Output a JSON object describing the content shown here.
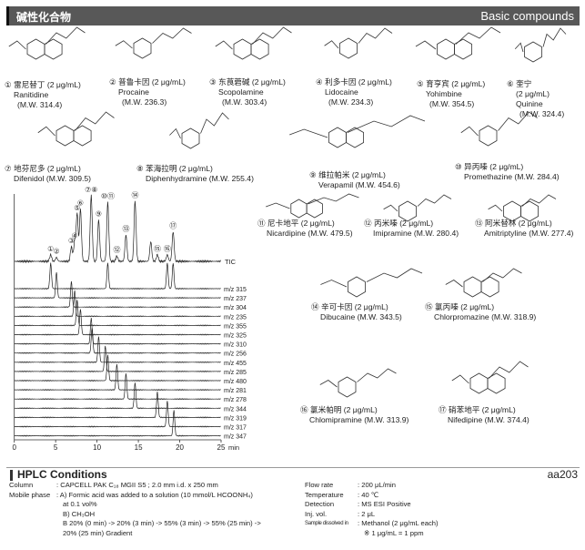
{
  "header": {
    "title_cn": "碱性化合物",
    "title_en": "Basic compounds"
  },
  "compounds": [
    {
      "num": "①",
      "name_cn": "雷尼替丁",
      "conc": "(2 μg/mL)",
      "name_en": "Ranitidine",
      "mw": "(M.W. 314.4)"
    },
    {
      "num": "②",
      "name_cn": "普鲁卡因",
      "conc": "(2 μg/mL)",
      "name_en": "Procaine",
      "mw": "(M.W. 236.3)"
    },
    {
      "num": "③",
      "name_cn": "东莨菪碱",
      "conc": "(2 μg/mL)",
      "name_en": "Scopolamine",
      "mw": "(M.W. 303.4)"
    },
    {
      "num": "④",
      "name_cn": "利多卡因",
      "conc": "(2 μg/mL)",
      "name_en": "Lidocaine",
      "mw": "(M.W. 234.3)"
    },
    {
      "num": "⑤",
      "name_cn": "育亨宾",
      "conc": "(2 μg/mL)",
      "name_en": "Yohimbine",
      "mw": "(M.W. 354.5)"
    },
    {
      "num": "⑥",
      "name_cn": "奎宁",
      "conc": "(2 μg/mL)",
      "name_en": "Quinine",
      "mw": "(M.W. 324.4)"
    },
    {
      "num": "⑦",
      "name_cn": "地芬尼多",
      "conc": "(2 μg/mL)",
      "name_en": "Difenidol",
      "mw": "(M.W. 309.5)"
    },
    {
      "num": "⑧",
      "name_cn": "苯海拉明",
      "conc": "(2 μg/mL)",
      "name_en": "Diphenhydramine",
      "mw": "(M.W. 255.4)"
    },
    {
      "num": "⑨",
      "name_cn": "维拉帕米",
      "conc": "(2 μg/mL)",
      "name_en": "Verapamil",
      "mw": "(M.W. 454.6)"
    },
    {
      "num": "⑩",
      "name_cn": "异丙嗪",
      "conc": "(2 μg/mL)",
      "name_en": "Promethazine",
      "mw": "(M.W. 284.4)"
    },
    {
      "num": "⑪",
      "name_cn": "尼卡地平",
      "conc": "(2 μg/mL)",
      "name_en": "Nicardipine",
      "mw": "(M.W. 479.5)"
    },
    {
      "num": "⑫",
      "name_cn": "丙米嗪",
      "conc": "(2 μg/mL)",
      "name_en": "Imipramine",
      "mw": "(M.W. 280.4)"
    },
    {
      "num": "⑬",
      "name_cn": "阿米替林",
      "conc": "(2 μg/mL)",
      "name_en": "Amitriptyline",
      "mw": "(M.W. 277.4)"
    },
    {
      "num": "⑭",
      "name_cn": "辛可卡因",
      "conc": "(2 μg/mL)",
      "name_en": "Dibucaine",
      "mw": "(M.W. 343.5)"
    },
    {
      "num": "⑮",
      "name_cn": "氯丙嗪",
      "conc": "(2 μg/mL)",
      "name_en": "Chlorpromazine",
      "mw": "(M.W. 318.9)"
    },
    {
      "num": "⑯",
      "name_cn": "氯米帕明",
      "conc": "(2 μg/mL)",
      "name_en": "Chlomipramine",
      "mw": "(M.W. 313.9)"
    },
    {
      "num": "⑰",
      "name_cn": "硝苯地平",
      "conc": "(2 μg/mL)",
      "name_en": "Nifedipine",
      "mw": "(M.W. 374.4)"
    }
  ],
  "chart_data": {
    "type": "line",
    "xlabel": "min",
    "xlim": [
      0,
      25
    ],
    "xticks": [
      "0",
      "5",
      "10",
      "15",
      "20",
      "25"
    ],
    "tic": {
      "label": "TIC",
      "peaks": [
        {
          "id": "①",
          "rt": 4.4,
          "rel": 0.1
        },
        {
          "id": "②",
          "rt": 5.1,
          "rel": 0.06
        },
        {
          "id": "③",
          "rt": 6.9,
          "rel": 0.22
        },
        {
          "id": "④",
          "rt": 7.3,
          "rel": 0.3
        },
        {
          "id": "⑤",
          "rt": 7.6,
          "rel": 0.72
        },
        {
          "id": "⑥",
          "rt": 8.0,
          "rel": 0.8
        },
        {
          "id": "⑦⑧",
          "rt": 9.3,
          "rel": 1.0
        },
        {
          "id": "⑨",
          "rt": 10.2,
          "rel": 0.63
        },
        {
          "id": "⑩⑪",
          "rt": 11.3,
          "rel": 0.9
        },
        {
          "id": "⑫",
          "rt": 12.4,
          "rel": 0.08
        },
        {
          "id": "⑬",
          "rt": 13.5,
          "rel": 0.4
        },
        {
          "id": "⑭",
          "rt": 14.6,
          "rel": 0.92
        },
        {
          "id": "",
          "rt": 16.5,
          "rel": 0.3
        },
        {
          "id": "⑮",
          "rt": 17.3,
          "rel": 0.1
        },
        {
          "id": "⑯",
          "rt": 18.5,
          "rel": 0.1
        },
        {
          "id": "⑰",
          "rt": 19.2,
          "rel": 0.45
        }
      ]
    },
    "traces": [
      {
        "label": "m/z 315",
        "peaks": [
          4.4,
          11.3,
          18.5,
          19.2
        ]
      },
      {
        "label": "m/z 237",
        "peaks": [
          5.1
        ]
      },
      {
        "label": "m/z 304",
        "peaks": [
          6.9
        ]
      },
      {
        "label": "m/z 235",
        "peaks": [
          7.3
        ]
      },
      {
        "label": "m/z 355",
        "peaks": [
          7.6
        ]
      },
      {
        "label": "m/z 325",
        "peaks": [
          8.0
        ]
      },
      {
        "label": "m/z 310",
        "peaks": [
          9.3
        ]
      },
      {
        "label": "m/z 256",
        "peaks": [
          9.4
        ]
      },
      {
        "label": "m/z 455",
        "peaks": [
          10.2
        ]
      },
      {
        "label": "m/z 285",
        "peaks": [
          11.0
        ]
      },
      {
        "label": "m/z 480",
        "peaks": [
          11.3
        ]
      },
      {
        "label": "m/z 281",
        "peaks": [
          12.4
        ]
      },
      {
        "label": "m/z 278",
        "peaks": [
          13.5
        ]
      },
      {
        "label": "m/z 344",
        "peaks": [
          14.6
        ]
      },
      {
        "label": "m/z 319",
        "peaks": [
          17.3
        ]
      },
      {
        "label": "m/z 317",
        "peaks": [
          18.5
        ]
      },
      {
        "label": "m/z 347",
        "peaks": [
          19.3
        ]
      }
    ]
  },
  "conditions": {
    "title": "HPLC Conditions",
    "code": "aa203",
    "left": [
      {
        "k": "Column",
        "v": ": CAPCELL PAK C₁₈ MGII S5 ; 2.0 mm i.d. x 250 mm"
      },
      {
        "k": "Mobile phase",
        "v": ": A) Formic acid was added to a solution (10 mmol/L HCOONH₄)"
      },
      {
        "k": "",
        "v": "at 0.1 vol%"
      },
      {
        "k": "",
        "v": "B) CH₃OH"
      },
      {
        "k": "",
        "v": "B 20% (0 min) -> 20% (3 min) -> 55% (3 min) -> 55% (25 min) ->"
      },
      {
        "k": "",
        "v": "20% (25 min) Gradient"
      }
    ],
    "right": [
      {
        "k": "Flow rate",
        "v": ": 200 μL/min"
      },
      {
        "k": "Temperature",
        "v": ": 40 ℃"
      },
      {
        "k": "Detection",
        "v": ": MS ESI Positive"
      },
      {
        "k": "Inj. vol.",
        "v": ": 2 μL"
      },
      {
        "k": "Sample dissolved in",
        "v": ": Methanol (2 μg/mL each)"
      },
      {
        "k": "",
        "v": "※ 1 μg/mL = 1 ppm"
      }
    ]
  }
}
